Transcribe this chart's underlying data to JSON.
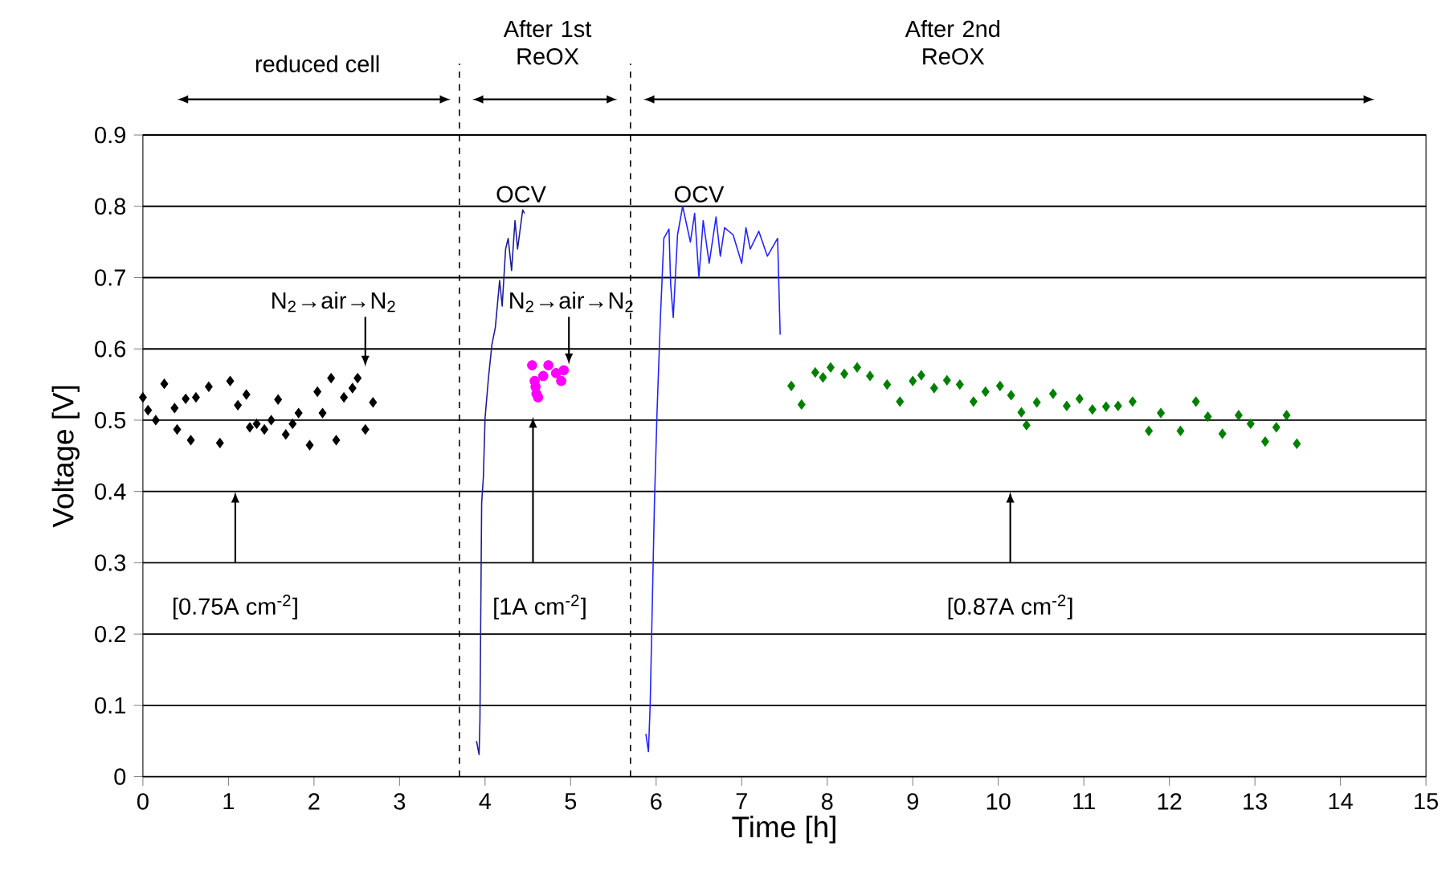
{
  "chart_data": {
    "type": "line",
    "xlabel": "Time [h]",
    "ylabel": "Voltage [V]",
    "xlim": [
      0,
      15
    ],
    "xticks": [
      0,
      1,
      2,
      3,
      4,
      5,
      6,
      7,
      8,
      9,
      10,
      11,
      12,
      13,
      14,
      15
    ],
    "ylim": [
      0,
      0.9
    ],
    "yticks": [
      0,
      0.1,
      0.2,
      0.3,
      0.4,
      0.5,
      0.6,
      0.7,
      0.8,
      0.9
    ],
    "grid": "y",
    "ref_lines": [
      {
        "axis": "x",
        "value": 3.7,
        "line_style": "dashed",
        "color": "#000000"
      },
      {
        "axis": "x",
        "value": 5.7,
        "line_style": "dashed",
        "color": "#000000"
      }
    ],
    "annotations": [
      "reduced cell",
      "After 1st ReOX",
      "After 2nd ReOX",
      "OCV",
      "OCV",
      "N$_{2}$→air→N$_{2}$",
      {
        "text": "N$_{2}$→air→N$_{2}$",
        "x": 4.98,
        "y": 0.578
      },
      "[0.75A cm$^{-2}$]",
      "[1A cm$^{-2}$]",
      "[0.87A cm$^{-2}$]"
    ],
    "series": [
      {
        "type": "scatter",
        "marker": "diamond",
        "color": "#000000",
        "x": [
          0.0,
          0.06,
          0.15,
          0.25,
          0.37,
          0.4,
          0.5,
          0.56,
          0.62,
          0.77,
          0.9,
          1.02,
          1.11,
          1.21,
          1.25,
          1.33,
          1.42,
          1.5,
          1.58,
          1.67,
          1.75,
          1.82,
          1.95,
          2.04,
          2.1,
          2.2,
          2.26,
          2.35,
          2.45,
          2.51,
          2.6,
          2.69
        ],
        "values": [
          0.532,
          0.514,
          0.5,
          0.551,
          0.517,
          0.487,
          0.53,
          0.472,
          0.532,
          0.547,
          0.468,
          0.555,
          0.521,
          0.536,
          0.49,
          0.495,
          0.487,
          0.5,
          0.529,
          0.48,
          0.495,
          0.51,
          0.465,
          0.54,
          0.51,
          0.559,
          0.472,
          0.532,
          0.545,
          0.559,
          0.487,
          0.525
        ]
      },
      {
        "color": "#1c1c9c",
        "x": [
          3.9,
          3.93,
          3.94,
          3.96,
          3.98,
          4.0,
          4.04,
          4.08,
          4.12,
          4.17,
          4.2,
          4.24,
          4.27,
          4.31,
          4.35,
          4.38,
          4.44,
          4.46
        ],
        "values": [
          0.05,
          0.031,
          0.08,
          0.384,
          0.42,
          0.503,
          0.56,
          0.606,
          0.63,
          0.696,
          0.66,
          0.74,
          0.755,
          0.71,
          0.78,
          0.74,
          0.795,
          0.79
        ]
      },
      {
        "type": "scatter",
        "marker": "circle",
        "color": "#ff00ff",
        "x": [
          4.55,
          4.58,
          4.59,
          4.6,
          4.62,
          4.68,
          4.74,
          4.83,
          4.89,
          4.92
        ],
        "values": [
          0.577,
          0.555,
          0.547,
          0.537,
          0.532,
          0.562,
          0.577,
          0.566,
          0.555,
          0.57
        ]
      },
      {
        "color": "#2222ff",
        "x": [
          5.88,
          5.91,
          5.93,
          5.98,
          6.01,
          6.05,
          6.09,
          6.15,
          6.17,
          6.2,
          6.25,
          6.31,
          6.4,
          6.45,
          6.5,
          6.55,
          6.62,
          6.7,
          6.75,
          6.8,
          6.9,
          7.0,
          7.05,
          7.1,
          7.2,
          7.3,
          7.42,
          7.45
        ],
        "values": [
          0.06,
          0.035,
          0.1,
          0.384,
          0.51,
          0.644,
          0.755,
          0.768,
          0.69,
          0.644,
          0.76,
          0.8,
          0.75,
          0.79,
          0.7,
          0.78,
          0.72,
          0.785,
          0.73,
          0.77,
          0.76,
          0.72,
          0.77,
          0.74,
          0.765,
          0.73,
          0.755,
          0.62
        ]
      },
      {
        "type": "scatter",
        "marker": "diamond",
        "color": "#008000",
        "x": [
          7.58,
          7.7,
          7.86,
          7.95,
          8.04,
          8.2,
          8.35,
          8.5,
          8.7,
          8.85,
          9.0,
          9.1,
          9.25,
          9.4,
          9.55,
          9.71,
          9.85,
          10.02,
          10.15,
          10.27,
          10.33,
          10.45,
          10.64,
          10.8,
          10.95,
          11.1,
          11.26,
          11.4,
          11.57,
          11.76,
          11.9,
          12.13,
          12.31,
          12.45,
          12.62,
          12.81,
          12.95,
          13.12,
          13.25,
          13.37,
          13.49
        ],
        "values": [
          0.548,
          0.522,
          0.567,
          0.56,
          0.574,
          0.565,
          0.574,
          0.562,
          0.55,
          0.526,
          0.555,
          0.563,
          0.545,
          0.556,
          0.55,
          0.526,
          0.54,
          0.548,
          0.535,
          0.511,
          0.493,
          0.525,
          0.537,
          0.52,
          0.53,
          0.515,
          0.519,
          0.52,
          0.526,
          0.485,
          0.51,
          0.485,
          0.526,
          0.505,
          0.481,
          0.507,
          0.495,
          0.47,
          0.49,
          0.507,
          0.467
        ]
      }
    ]
  }
}
